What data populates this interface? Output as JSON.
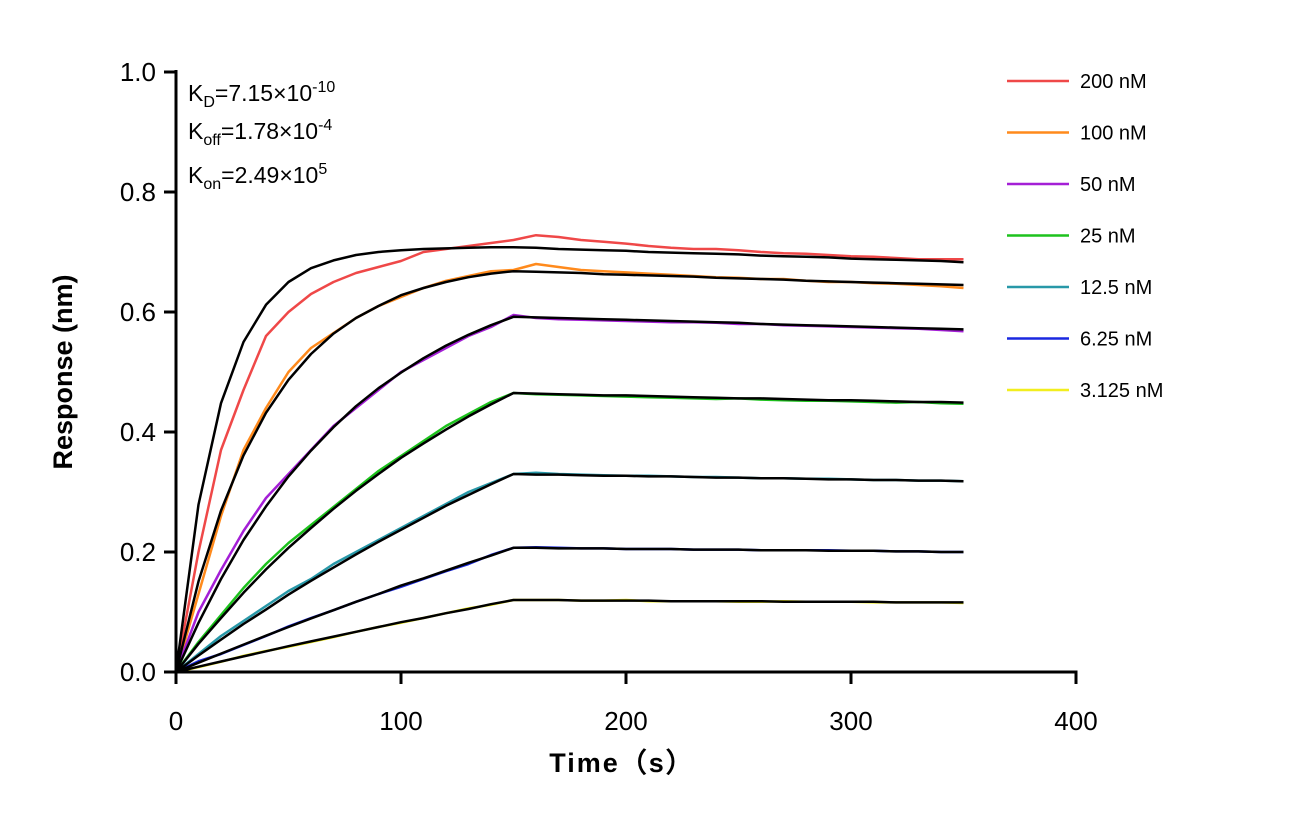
{
  "chart_data": {
    "type": "line",
    "title": "",
    "xlabel": "Time（s）",
    "ylabel": "Response (nm)",
    "xlim": [
      0,
      400
    ],
    "ylim": [
      0,
      1.0
    ],
    "xticks": [
      "0",
      "100",
      "200",
      "300",
      "400"
    ],
    "yticks": [
      "0.0",
      "0.2",
      "0.4",
      "0.6",
      "0.8",
      "1.0"
    ],
    "grid": false,
    "legend_position": "right",
    "annotations": {
      "kd": {
        "label": "K",
        "sub": "D",
        "value": "=7.15×10",
        "exp": "-10"
      },
      "koff": {
        "label": "K",
        "sub": "off",
        "value": "=1.78×10",
        "exp": "-4"
      },
      "kon": {
        "label": "K",
        "sub": "on",
        "value": "=2.49×10",
        "exp": "5"
      }
    },
    "x": [
      0,
      10,
      20,
      30,
      40,
      50,
      60,
      70,
      80,
      90,
      100,
      110,
      120,
      130,
      140,
      150,
      160,
      170,
      180,
      190,
      200,
      210,
      220,
      230,
      240,
      250,
      260,
      270,
      280,
      290,
      300,
      310,
      320,
      330,
      340,
      350
    ],
    "fit_color": "#000000",
    "series": [
      {
        "name": "200 nM",
        "color": "#ef4848",
        "values": [
          0,
          0.2,
          0.37,
          0.47,
          0.56,
          0.6,
          0.63,
          0.65,
          0.665,
          0.675,
          0.685,
          0.7,
          0.705,
          0.71,
          0.715,
          0.72,
          0.728,
          0.725,
          0.72,
          0.717,
          0.714,
          0.71,
          0.707,
          0.705,
          0.705,
          0.703,
          0.7,
          0.698,
          0.697,
          0.695,
          0.693,
          0.692,
          0.69,
          0.688,
          0.688,
          0.688
        ],
        "fit": [
          0,
          0.279,
          0.448,
          0.55,
          0.612,
          0.65,
          0.673,
          0.686,
          0.695,
          0.7,
          0.703,
          0.705,
          0.706,
          0.707,
          0.708,
          0.708,
          0.707,
          0.705,
          0.704,
          0.703,
          0.702,
          0.7,
          0.699,
          0.698,
          0.697,
          0.696,
          0.694,
          0.693,
          0.692,
          0.691,
          0.689,
          0.688,
          0.687,
          0.686,
          0.685,
          0.683
        ]
      },
      {
        "name": "100 nM",
        "color": "#ff8a1c",
        "values": [
          0,
          0.13,
          0.26,
          0.37,
          0.44,
          0.5,
          0.54,
          0.565,
          0.59,
          0.61,
          0.625,
          0.64,
          0.652,
          0.66,
          0.668,
          0.67,
          0.68,
          0.675,
          0.67,
          0.668,
          0.666,
          0.664,
          0.662,
          0.66,
          0.658,
          0.657,
          0.655,
          0.655,
          0.652,
          0.65,
          0.65,
          0.648,
          0.647,
          0.645,
          0.643,
          0.64
        ],
        "fit": [
          0,
          0.151,
          0.269,
          0.361,
          0.432,
          0.487,
          0.53,
          0.564,
          0.59,
          0.61,
          0.628,
          0.64,
          0.65,
          0.658,
          0.664,
          0.668,
          0.667,
          0.666,
          0.665,
          0.663,
          0.662,
          0.661,
          0.66,
          0.659,
          0.657,
          0.656,
          0.655,
          0.654,
          0.652,
          0.651,
          0.65,
          0.649,
          0.648,
          0.647,
          0.646,
          0.645
        ]
      },
      {
        "name": "50 nM",
        "color": "#a41fd6",
        "values": [
          0,
          0.1,
          0.17,
          0.235,
          0.29,
          0.33,
          0.37,
          0.41,
          0.44,
          0.47,
          0.5,
          0.52,
          0.54,
          0.56,
          0.575,
          0.595,
          0.59,
          0.588,
          0.587,
          0.586,
          0.585,
          0.584,
          0.583,
          0.583,
          0.582,
          0.58,
          0.58,
          0.578,
          0.577,
          0.576,
          0.575,
          0.574,
          0.573,
          0.572,
          0.57,
          0.568
        ],
        "fit": [
          0,
          0.082,
          0.155,
          0.22,
          0.276,
          0.326,
          0.369,
          0.408,
          0.443,
          0.473,
          0.499,
          0.523,
          0.544,
          0.562,
          0.578,
          0.592,
          0.591,
          0.59,
          0.589,
          0.588,
          0.587,
          0.586,
          0.585,
          0.584,
          0.583,
          0.582,
          0.58,
          0.579,
          0.578,
          0.577,
          0.576,
          0.575,
          0.574,
          0.573,
          0.572,
          0.571
        ]
      },
      {
        "name": "25 nM",
        "color": "#1dc21d",
        "values": [
          0,
          0.05,
          0.095,
          0.14,
          0.18,
          0.215,
          0.245,
          0.275,
          0.305,
          0.335,
          0.36,
          0.385,
          0.41,
          0.43,
          0.45,
          0.465,
          0.463,
          0.462,
          0.461,
          0.46,
          0.459,
          0.458,
          0.457,
          0.456,
          0.455,
          0.456,
          0.454,
          0.453,
          0.452,
          0.452,
          0.451,
          0.45,
          0.449,
          0.45,
          0.448,
          0.447
        ],
        "fit": [
          0,
          0.047,
          0.09,
          0.132,
          0.171,
          0.207,
          0.24,
          0.272,
          0.302,
          0.33,
          0.357,
          0.381,
          0.404,
          0.426,
          0.446,
          0.465,
          0.464,
          0.463,
          0.462,
          0.461,
          0.461,
          0.46,
          0.459,
          0.458,
          0.457,
          0.456,
          0.456,
          0.455,
          0.454,
          0.453,
          0.453,
          0.452,
          0.451,
          0.45,
          0.45,
          0.449
        ]
      },
      {
        "name": "12.5 nM",
        "color": "#2898a8",
        "values": [
          0,
          0.03,
          0.06,
          0.085,
          0.11,
          0.135,
          0.155,
          0.18,
          0.2,
          0.22,
          0.24,
          0.26,
          0.28,
          0.3,
          0.315,
          0.33,
          0.332,
          0.33,
          0.329,
          0.328,
          0.327,
          0.327,
          0.326,
          0.325,
          0.325,
          0.324,
          0.323,
          0.323,
          0.322,
          0.322,
          0.321,
          0.32,
          0.32,
          0.319,
          0.319,
          0.318
        ],
        "fit": [
          0,
          0.0275,
          0.054,
          0.08,
          0.104,
          0.129,
          0.152,
          0.174,
          0.196,
          0.217,
          0.237,
          0.257,
          0.277,
          0.295,
          0.313,
          0.33,
          0.329,
          0.329,
          0.328,
          0.327,
          0.327,
          0.326,
          0.326,
          0.325,
          0.324,
          0.324,
          0.323,
          0.323,
          0.322,
          0.321,
          0.321,
          0.32,
          0.32,
          0.319,
          0.319,
          0.318
        ]
      },
      {
        "name": "6.25 nM",
        "color": "#1a28e0",
        "values": [
          0,
          0.018,
          0.03,
          0.045,
          0.06,
          0.076,
          0.09,
          0.103,
          0.117,
          0.13,
          0.142,
          0.155,
          0.168,
          0.18,
          0.195,
          0.207,
          0.208,
          0.207,
          0.206,
          0.206,
          0.205,
          0.205,
          0.205,
          0.204,
          0.204,
          0.204,
          0.203,
          0.203,
          0.203,
          0.203,
          0.202,
          0.202,
          0.201,
          0.201,
          0.2,
          0.2
        ],
        "fit": [
          0,
          0.0155,
          0.0307,
          0.0457,
          0.0605,
          0.075,
          0.0893,
          0.103,
          0.117,
          0.13,
          0.144,
          0.156,
          0.169,
          0.182,
          0.194,
          0.207,
          0.207,
          0.206,
          0.206,
          0.206,
          0.205,
          0.205,
          0.205,
          0.204,
          0.204,
          0.204,
          0.203,
          0.203,
          0.203,
          0.202,
          0.202,
          0.202,
          0.201,
          0.201,
          0.2,
          0.2
        ]
      },
      {
        "name": "3.125 nM",
        "color": "#f2ee1e",
        "values": [
          0,
          0.008,
          0.017,
          0.027,
          0.035,
          0.042,
          0.05,
          0.058,
          0.067,
          0.075,
          0.082,
          0.09,
          0.098,
          0.106,
          0.112,
          0.12,
          0.12,
          0.12,
          0.119,
          0.119,
          0.12,
          0.118,
          0.118,
          0.118,
          0.118,
          0.117,
          0.117,
          0.118,
          0.117,
          0.117,
          0.117,
          0.116,
          0.116,
          0.116,
          0.116,
          0.115
        ],
        "fit": [
          0,
          0.0088,
          0.0175,
          0.026,
          0.0345,
          0.043,
          0.051,
          0.059,
          0.067,
          0.075,
          0.083,
          0.09,
          0.098,
          0.105,
          0.113,
          0.12,
          0.12,
          0.12,
          0.119,
          0.119,
          0.119,
          0.119,
          0.118,
          0.118,
          0.118,
          0.118,
          0.118,
          0.117,
          0.117,
          0.117,
          0.117,
          0.117,
          0.116,
          0.116,
          0.116,
          0.116
        ]
      }
    ]
  }
}
